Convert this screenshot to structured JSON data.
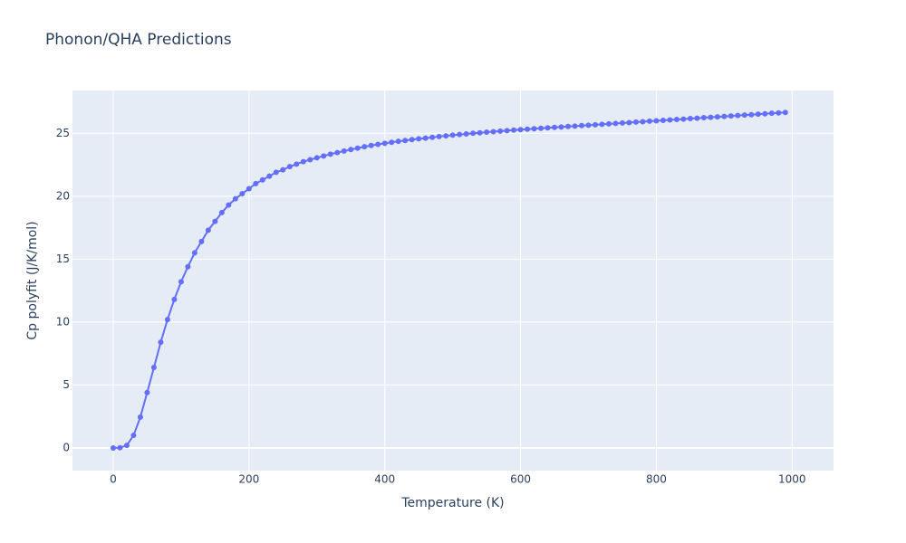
{
  "chart_data": {
    "type": "line",
    "title": "Phonon/QHA Predictions",
    "x_label": "Temperature (K)",
    "y_label": "Cp polyfit (J/K/mol)",
    "x": [
      0,
      10,
      20,
      30,
      40,
      50,
      60,
      70,
      80,
      90,
      100,
      110,
      120,
      130,
      140,
      150,
      160,
      170,
      180,
      190,
      200,
      210,
      220,
      230,
      240,
      250,
      260,
      270,
      280,
      290,
      300,
      310,
      320,
      330,
      340,
      350,
      360,
      370,
      380,
      390,
      400,
      410,
      420,
      430,
      440,
      450,
      460,
      470,
      480,
      490,
      500,
      510,
      520,
      530,
      540,
      550,
      560,
      570,
      580,
      590,
      600,
      610,
      620,
      630,
      640,
      650,
      660,
      670,
      680,
      690,
      700,
      710,
      720,
      730,
      740,
      750,
      760,
      770,
      780,
      790,
      800,
      810,
      820,
      830,
      840,
      850,
      860,
      870,
      880,
      890,
      900,
      910,
      920,
      930,
      940,
      950,
      960,
      970,
      980,
      990
    ],
    "series": [
      {
        "name": "Cp polyfit",
        "color": "#636efa",
        "values": [
          0,
          0.02,
          0.2,
          1.0,
          2.45,
          4.4,
          6.4,
          8.4,
          10.2,
          11.8,
          13.2,
          14.4,
          15.5,
          16.4,
          17.3,
          18.0,
          18.7,
          19.3,
          19.8,
          20.2,
          20.6,
          21.0,
          21.3,
          21.6,
          21.9,
          22.1,
          22.35,
          22.55,
          22.75,
          22.9,
          23.05,
          23.2,
          23.34,
          23.47,
          23.59,
          23.71,
          23.82,
          23.93,
          24.03,
          24.12,
          24.2,
          24.28,
          24.36,
          24.43,
          24.5,
          24.56,
          24.62,
          24.68,
          24.74,
          24.8,
          24.85,
          24.9,
          24.95,
          25.0,
          25.04,
          25.09,
          25.13,
          25.17,
          25.21,
          25.25,
          25.29,
          25.33,
          25.36,
          25.4,
          25.43,
          25.47,
          25.5,
          25.54,
          25.57,
          25.61,
          25.64,
          25.68,
          25.71,
          25.75,
          25.78,
          25.82,
          25.85,
          25.89,
          25.92,
          25.96,
          25.99,
          26.03,
          26.06,
          26.1,
          26.13,
          26.17,
          26.2,
          26.24,
          26.27,
          26.31,
          26.34,
          26.38,
          26.41,
          26.45,
          26.48,
          26.52,
          26.55,
          26.59,
          26.62,
          26.66
        ]
      }
    ],
    "xlim": [
      -60,
      1061
    ],
    "xticks": [
      0,
      200,
      400,
      600,
      800,
      1000
    ],
    "ylim": [
      -1.8,
      28.4
    ],
    "yticks": [
      0,
      5,
      10,
      15,
      20,
      25
    ],
    "grid": true
  }
}
